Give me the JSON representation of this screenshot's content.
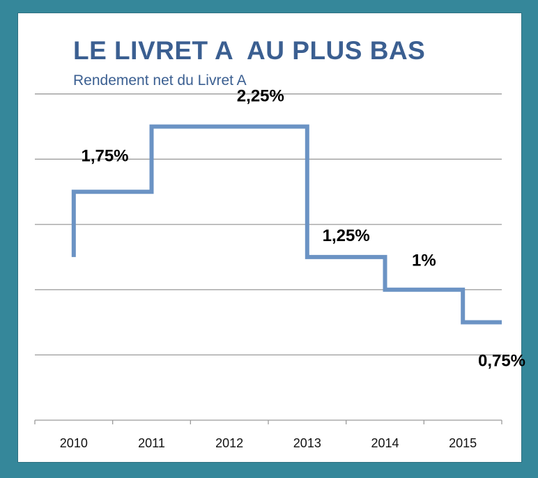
{
  "chart_data": {
    "type": "line",
    "step": true,
    "title": "LE LIVRET A  AU PLUS BAS",
    "subtitle": "Rendement net du Livret A",
    "xlabel": "",
    "ylabel": "",
    "categories": [
      "2010",
      "2011",
      "2012",
      "2013",
      "2014",
      "2015"
    ],
    "ylim": [
      0,
      2.75
    ],
    "grid": true,
    "line_color": "#6b93c4",
    "title_color": "#3b5f91",
    "series": [
      {
        "points": [
          {
            "x": 2010.0,
            "y": 1.25
          },
          {
            "x": 2010.0,
            "y": 1.75
          },
          {
            "x": 2011.0,
            "y": 1.75
          },
          {
            "x": 2011.0,
            "y": 2.25
          },
          {
            "x": 2013.0,
            "y": 2.25
          },
          {
            "x": 2013.0,
            "y": 1.25
          },
          {
            "x": 2014.0,
            "y": 1.25
          },
          {
            "x": 2014.0,
            "y": 1.0
          },
          {
            "x": 2015.0,
            "y": 1.0
          },
          {
            "x": 2015.0,
            "y": 0.75
          },
          {
            "x": 2015.5,
            "y": 0.75
          }
        ]
      }
    ],
    "data_labels": [
      {
        "text": "1,75%",
        "x": 2010.4,
        "y": 1.75
      },
      {
        "text": "2,25%",
        "x": 2012.4,
        "y": 2.25
      },
      {
        "text": "1,25%",
        "x": 2013.5,
        "y": 1.25
      },
      {
        "text": "1%",
        "x": 2014.5,
        "y": 1.0
      },
      {
        "text": "0,75%",
        "x": 2015.5,
        "y": 0.75
      }
    ]
  }
}
